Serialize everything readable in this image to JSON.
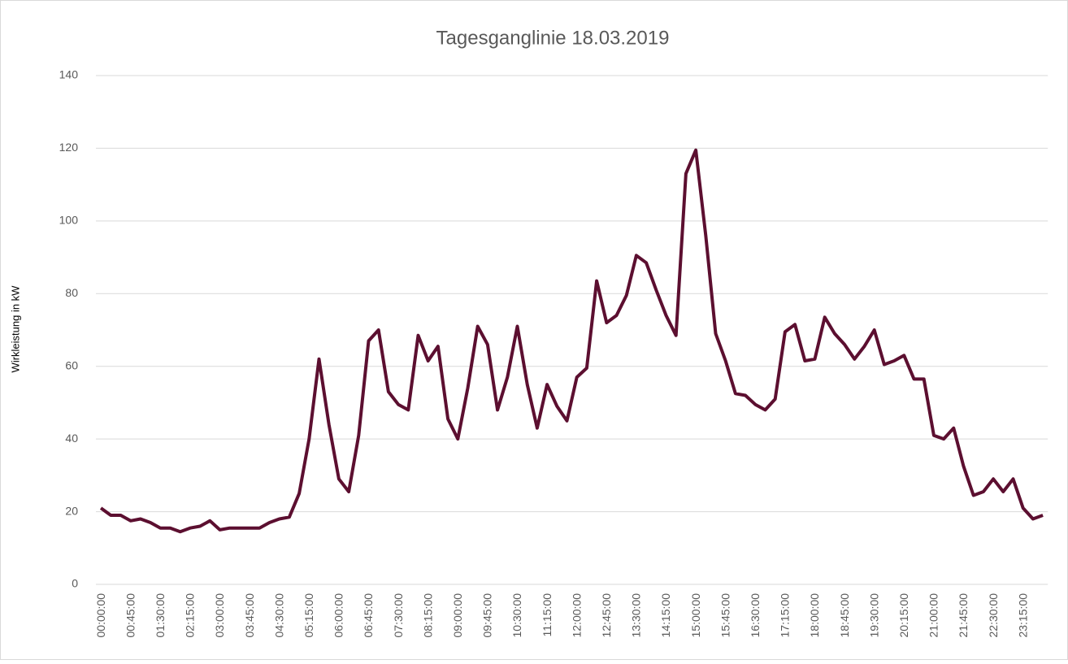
{
  "chart_data": {
    "type": "line",
    "title": "Tagesganglinie 18.03.2019",
    "y_label": "Wirkleistung in kW",
    "categories": [
      "00:00:00",
      null,
      null,
      "00:45:00",
      null,
      null,
      "01:30:00",
      null,
      null,
      "02:15:00",
      null,
      null,
      "03:00:00",
      null,
      null,
      "03:45:00",
      null,
      null,
      "04:30:00",
      null,
      null,
      "05:15:00",
      null,
      null,
      "06:00:00",
      null,
      null,
      "06:45:00",
      null,
      null,
      "07:30:00",
      null,
      null,
      "08:15:00",
      null,
      null,
      "09:00:00",
      null,
      null,
      "09:45:00",
      null,
      null,
      "10:30:00",
      null,
      null,
      "11:15:00",
      null,
      null,
      "12:00:00",
      null,
      null,
      "12:45:00",
      null,
      null,
      "13:30:00",
      null,
      null,
      "14:15:00",
      null,
      null,
      "15:00:00",
      null,
      null,
      "15:45:00",
      null,
      null,
      "16:30:00",
      null,
      null,
      "17:15:00",
      null,
      null,
      "18:00:00",
      null,
      null,
      "18:45:00",
      null,
      null,
      "19:30:00",
      null,
      null,
      "20:15:00",
      null,
      null,
      "21:00:00",
      null,
      null,
      "21:45:00",
      null,
      null,
      "22:30:00",
      null,
      null,
      "23:15:00",
      null,
      null
    ],
    "values": [
      21,
      19,
      19,
      17.5,
      18,
      17,
      15.5,
      15.5,
      14.5,
      15.5,
      16,
      17.5,
      15,
      15.5,
      15.5,
      15.5,
      15.5,
      17,
      18,
      18.5,
      25,
      40,
      62,
      44,
      29,
      25.5,
      41,
      67,
      70,
      53,
      49.5,
      48,
      68.5,
      61.5,
      65.5,
      45.5,
      40,
      54,
      71,
      66,
      48,
      57,
      71,
      55,
      43,
      55,
      49,
      45,
      57,
      59.5,
      83.5,
      72,
      74,
      79.5,
      90.5,
      88.5,
      81,
      74,
      68.5,
      113,
      119.5,
      96,
      69,
      61.5,
      52.5,
      52,
      49.5,
      48,
      51,
      69.5,
      71.5,
      61.5,
      62,
      73.5,
      69,
      66,
      62,
      65.5,
      70,
      60.5,
      61.5,
      63,
      56.5,
      56.5,
      41,
      40,
      43,
      32.5,
      24.5,
      25.5,
      29,
      25.5,
      29,
      21,
      18,
      19
    ],
    "color": "#5c0f30",
    "ylim": [
      0,
      140
    ],
    "yticks": [
      0,
      20,
      40,
      60,
      80,
      100,
      120,
      140
    ],
    "grid": true
  }
}
